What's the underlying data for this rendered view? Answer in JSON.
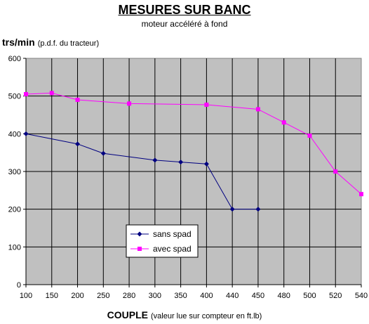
{
  "chart_data": {
    "type": "line",
    "title": "MESURES SUR BANC",
    "subtitle": "moteur accéléré à fond",
    "ylabel_main": "trs/min",
    "ylabel_note": "(p.d.f. du tracteur)",
    "xlabel_main": "COUPLE",
    "xlabel_note": "(valeur lue sur compteur en ft.lb)",
    "categories": [
      "100",
      "150",
      "200",
      "250",
      "280",
      "300",
      "350",
      "400",
      "440",
      "450",
      "480",
      "500",
      "520",
      "540"
    ],
    "ylim": [
      0,
      600
    ],
    "yticks": [
      0,
      100,
      200,
      300,
      400,
      500,
      600
    ],
    "grid": true,
    "legend_position": "bottom-left",
    "series": [
      {
        "name": "sans spad",
        "color": "#000080",
        "marker": "diamond",
        "points": [
          {
            "x": "100",
            "y": 400
          },
          {
            "x": "200",
            "y": 373
          },
          {
            "x": "250",
            "y": 348
          },
          {
            "x": "300",
            "y": 330
          },
          {
            "x": "350",
            "y": 325
          },
          {
            "x": "400",
            "y": 320
          },
          {
            "x": "440",
            "y": 200
          },
          {
            "x": "450",
            "y": 200
          }
        ]
      },
      {
        "name": "avec spad",
        "color": "#FF00FF",
        "marker": "square",
        "points": [
          {
            "x": "100",
            "y": 505
          },
          {
            "x": "150",
            "y": 508
          },
          {
            "x": "200",
            "y": 490
          },
          {
            "x": "280",
            "y": 480
          },
          {
            "x": "400",
            "y": 477
          },
          {
            "x": "450",
            "y": 465
          },
          {
            "x": "480",
            "y": 430
          },
          {
            "x": "500",
            "y": 395
          },
          {
            "x": "520",
            "y": 300
          },
          {
            "x": "540",
            "y": 240
          }
        ]
      }
    ]
  }
}
